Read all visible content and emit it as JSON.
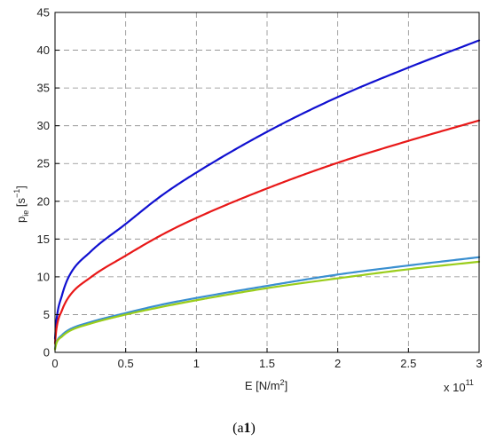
{
  "chart_data": {
    "type": "line",
    "xlabel": "E [N/m²]",
    "ylabel": "p_ie [s⁻¹]",
    "ylabel_main": "p",
    "ylabel_sub": "ie",
    "ylabel_unit": "[s",
    "ylabel_unit_sup": "−1",
    "ylabel_unit_end": "]",
    "x_multiplier": "x 10",
    "x_multiplier_exp": "11",
    "caption_main": "(a",
    "caption_bold": "1",
    "caption_end": ")",
    "xlim": [
      0,
      3
    ],
    "ylim": [
      0,
      45
    ],
    "xticks": [
      0,
      0.5,
      1,
      1.5,
      2,
      2.5,
      3
    ],
    "xtick_labels": [
      "0",
      "0.5",
      "1",
      "1.5",
      "2",
      "2.5",
      "3"
    ],
    "yticks": [
      0,
      5,
      10,
      15,
      20,
      25,
      30,
      35,
      40,
      45
    ],
    "ytick_labels": [
      "0",
      "5",
      "10",
      "15",
      "20",
      "25",
      "30",
      "35",
      "40",
      "45"
    ],
    "grid": true,
    "series": [
      {
        "color": "#1010d0",
        "x": [
          0,
          0.01,
          0.05,
          0.1,
          0.25,
          0.5,
          0.75,
          1,
          1.5,
          2,
          2.5,
          3
        ],
        "y": [
          1.8,
          4.2,
          7.6,
          10.1,
          13.3,
          17.0,
          20.7,
          23.8,
          29.2,
          33.8,
          37.7,
          41.3
        ]
      },
      {
        "color": "#e81818",
        "x": [
          0,
          0.01,
          0.05,
          0.1,
          0.25,
          0.5,
          0.75,
          1,
          1.5,
          2,
          2.5,
          3
        ],
        "y": [
          1.2,
          3.1,
          5.6,
          7.4,
          9.9,
          12.8,
          15.5,
          17.8,
          21.7,
          25.1,
          28.0,
          30.7
        ]
      },
      {
        "color": "#3a8fd0",
        "x": [
          0,
          0.01,
          0.05,
          0.1,
          0.25,
          0.5,
          0.75,
          1,
          1.5,
          2,
          2.5,
          3
        ],
        "y": [
          0.5,
          1.3,
          2.3,
          3.0,
          4.0,
          5.2,
          6.3,
          7.2,
          8.8,
          10.3,
          11.5,
          12.6
        ]
      },
      {
        "color": "#9acd1a",
        "x": [
          0,
          0.01,
          0.05,
          0.1,
          0.25,
          0.5,
          0.75,
          1,
          1.5,
          2,
          2.5,
          3
        ],
        "y": [
          0.4,
          1.2,
          2.1,
          2.8,
          3.8,
          5.0,
          6.0,
          6.9,
          8.5,
          9.8,
          11.0,
          12.0
        ]
      }
    ]
  }
}
